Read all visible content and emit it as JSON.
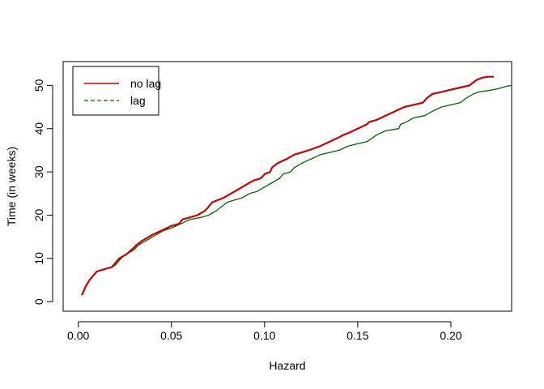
{
  "chart_data": {
    "type": "line",
    "title": "",
    "xlabel": "Hazard",
    "ylabel": "Time (in weeks)",
    "xlim": [
      -0.0081,
      0.2326
    ],
    "ylim": [
      -2.2,
      55.5
    ],
    "x_ticks": [
      0.0,
      0.05,
      0.1,
      0.15,
      0.2
    ],
    "x_tick_labels": [
      "0.00",
      "0.05",
      "0.10",
      "0.15",
      "0.20"
    ],
    "y_ticks": [
      0,
      10,
      20,
      30,
      40,
      50
    ],
    "y_tick_labels": [
      "0",
      "10",
      "20",
      "30",
      "40",
      "50"
    ],
    "grid": false,
    "legend": {
      "position": "top-left",
      "entries": [
        "no lag",
        "lag"
      ]
    },
    "series": [
      {
        "name": "no lag",
        "color": "#cc0000",
        "line_style": "solid",
        "x": [
          0.002,
          0.004,
          0.006,
          0.008,
          0.01,
          0.014,
          0.018,
          0.02,
          0.022,
          0.024,
          0.026,
          0.028,
          0.03,
          0.031,
          0.034,
          0.036,
          0.04,
          0.045,
          0.05,
          0.054,
          0.056,
          0.06,
          0.064,
          0.068,
          0.07,
          0.072,
          0.078,
          0.082,
          0.086,
          0.09,
          0.094,
          0.098,
          0.099,
          0.1,
          0.103,
          0.104,
          0.107,
          0.112,
          0.116,
          0.12,
          0.125,
          0.13,
          0.135,
          0.14,
          0.142,
          0.145,
          0.15,
          0.155,
          0.156,
          0.16,
          0.165,
          0.17,
          0.175,
          0.18,
          0.185,
          0.187,
          0.19,
          0.195,
          0.2,
          0.205,
          0.21,
          0.213,
          0.214,
          0.217,
          0.22,
          0.223
        ],
        "y": [
          1.5,
          3.5,
          5,
          6,
          7,
          7.5,
          8,
          9,
          10,
          10.5,
          11,
          11.8,
          12.5,
          13,
          14,
          14.5,
          15.5,
          16.5,
          17.5,
          18,
          19,
          19.5,
          20,
          21,
          22,
          23,
          24,
          25,
          26,
          27,
          28,
          28.5,
          29,
          29.5,
          30,
          31,
          32,
          33,
          34,
          34.5,
          35.2,
          36,
          37,
          38,
          38.5,
          39,
          40,
          41,
          41.5,
          42,
          43,
          44,
          45,
          45.5,
          46,
          47,
          48,
          48.5,
          49,
          49.5,
          50,
          51,
          51.3,
          51.8,
          52,
          52
        ]
      },
      {
        "name": "lag",
        "color": "#006600",
        "line_style": "dashed",
        "x": [
          0.002,
          0.004,
          0.006,
          0.008,
          0.01,
          0.014,
          0.018,
          0.02,
          0.022,
          0.024,
          0.026,
          0.028,
          0.03,
          0.032,
          0.034,
          0.038,
          0.042,
          0.046,
          0.05,
          0.055,
          0.06,
          0.066,
          0.07,
          0.074,
          0.077,
          0.08,
          0.084,
          0.088,
          0.092,
          0.096,
          0.1,
          0.104,
          0.108,
          0.11,
          0.114,
          0.116,
          0.12,
          0.125,
          0.13,
          0.135,
          0.14,
          0.145,
          0.15,
          0.155,
          0.16,
          0.165,
          0.172,
          0.173,
          0.176,
          0.18,
          0.186,
          0.19,
          0.195,
          0.2,
          0.205,
          0.208,
          0.212,
          0.215,
          0.22,
          0.225,
          0.23,
          0.2326
        ],
        "y": [
          1.5,
          3.5,
          5,
          6,
          7,
          7.5,
          8,
          8.5,
          9.5,
          10.5,
          11,
          11.5,
          12,
          13,
          13.5,
          14.5,
          15.5,
          16.5,
          17,
          18,
          19,
          19.5,
          20,
          21,
          22,
          23,
          23.5,
          24,
          25,
          25.5,
          26.5,
          27.5,
          28.5,
          29.5,
          30,
          31,
          32,
          33,
          34,
          34.5,
          35,
          36,
          36.5,
          37,
          38.5,
          39.5,
          40,
          41,
          41.5,
          42.5,
          43,
          44,
          45,
          45.5,
          46,
          47,
          48,
          48.5,
          48.8,
          49.2,
          49.8,
          50
        ]
      }
    ]
  }
}
